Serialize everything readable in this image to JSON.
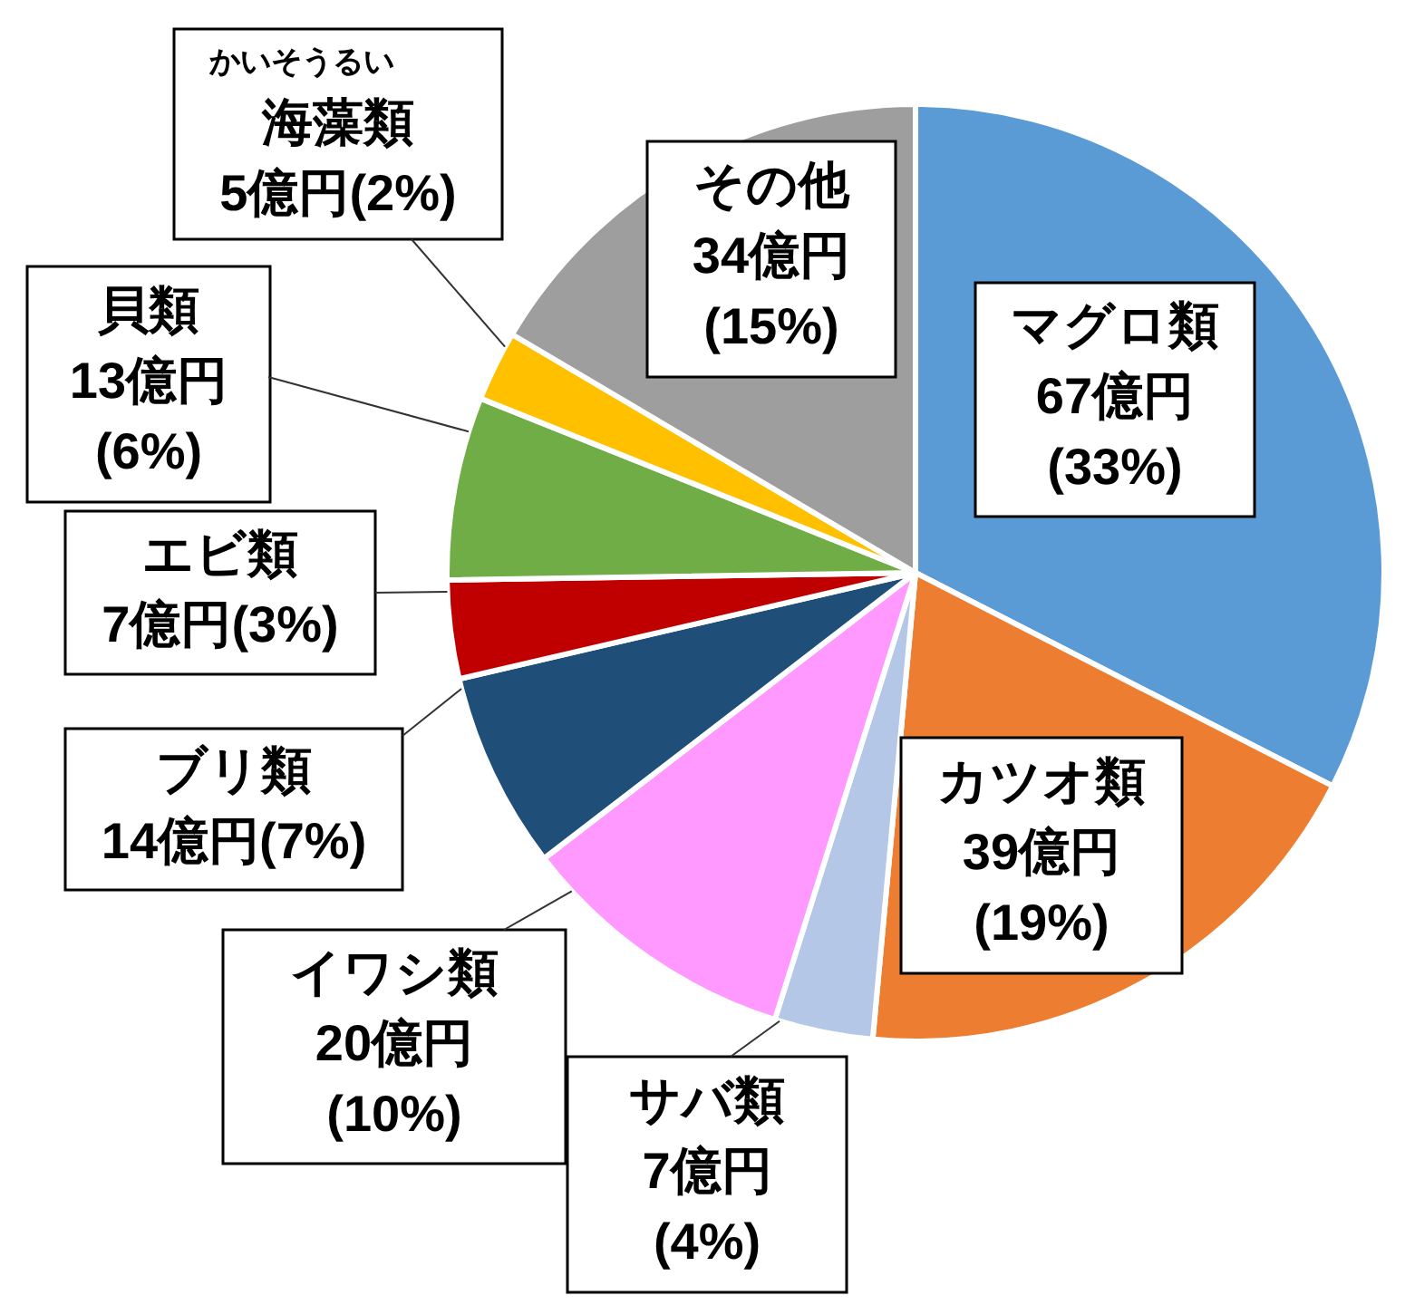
{
  "chart_data": {
    "type": "pie",
    "categories": [
      "マグロ類",
      "カツオ類",
      "サバ類",
      "イワシ類",
      "ブリ類",
      "エビ類",
      "貝類",
      "海藻類",
      "その他"
    ],
    "values": [
      67,
      39,
      7,
      20,
      14,
      7,
      13,
      5,
      34
    ],
    "colors": [
      "#5b9bd5",
      "#ed7d31",
      "#b4c7e7",
      "#ff99ff",
      "#1f4e79",
      "#c00000",
      "#70ad47",
      "#ffc000",
      "#9e9e9e"
    ],
    "value_labels": [
      "67億円(33%)",
      "39億円(19%)",
      "7億円(4%)",
      "20億円(10%)",
      "14億円(7%)",
      "7億円(3%)",
      "13億円(6%)",
      "5億円(2%)",
      "34億円(15%)"
    ],
    "annotations": [
      "かいそうるい"
    ]
  }
}
